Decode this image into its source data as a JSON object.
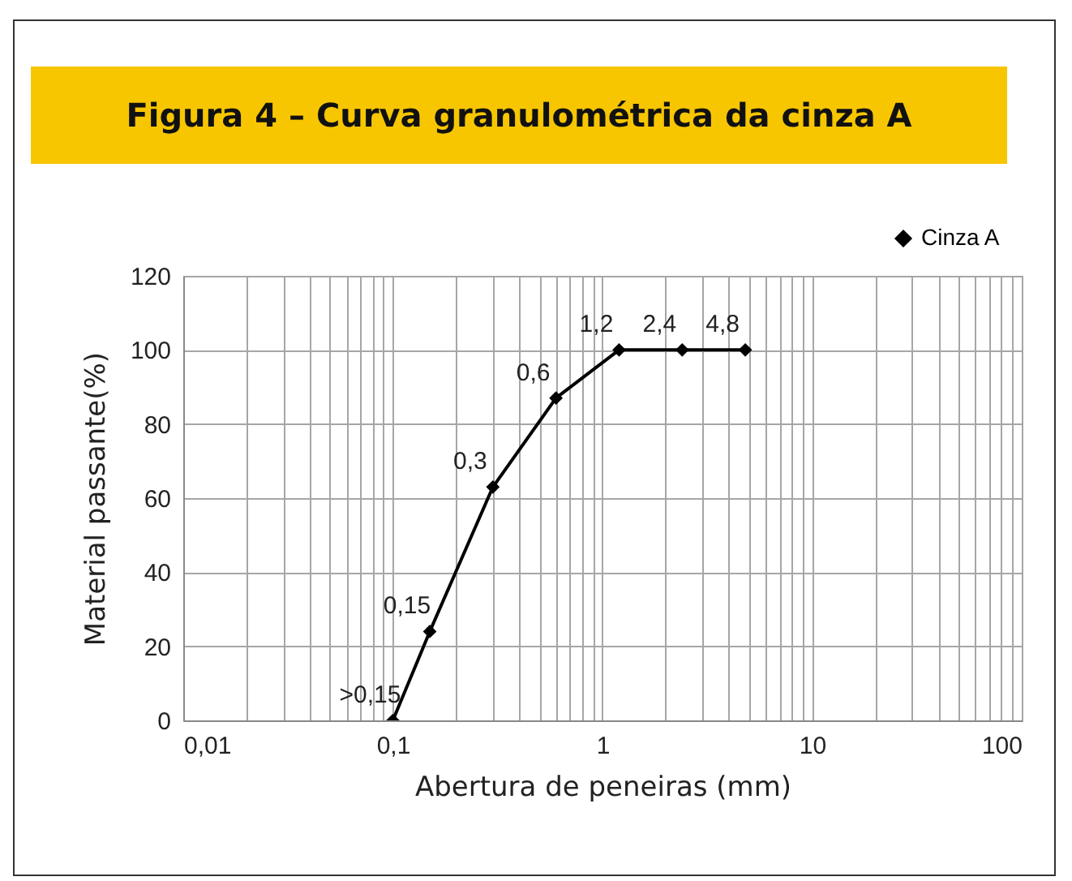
{
  "chart_data": {
    "type": "line",
    "title": "Figura 4 – Curva granulométrica da cinza A",
    "xlabel": "Abertura de peneiras (mm)",
    "ylabel": "Material passante(%)",
    "x": [
      0.1,
      0.15,
      0.3,
      0.6,
      1.2,
      2.4,
      4.8
    ],
    "series": [
      {
        "name": "Cinza A",
        "color": "#000000",
        "values": [
          0,
          24,
          63,
          87,
          100,
          100,
          100
        ]
      }
    ],
    "annotations": [
      {
        "text": ">0,15",
        "x": 0.1,
        "y": 0
      },
      {
        "text": "0,15",
        "x": 0.15,
        "y": 24
      },
      {
        "text": "0,3",
        "x": 0.3,
        "y": 63
      },
      {
        "text": "0,6",
        "x": 0.6,
        "y": 87
      },
      {
        "text": "1,2",
        "x": 1.2,
        "y": 100
      },
      {
        "text": "2,4",
        "x": 2.4,
        "y": 100
      },
      {
        "text": "4,8",
        "x": 4.8,
        "y": 100
      }
    ],
    "log": "x",
    "xlim": [
      0.01,
      100
    ],
    "ylim": [
      0,
      120
    ],
    "xticks": [
      {
        "value": 0.01,
        "label": "0,01"
      },
      {
        "value": 0.02,
        "label": null
      },
      {
        "value": 0.03,
        "label": null
      },
      {
        "value": 0.04,
        "label": null
      },
      {
        "value": 0.05,
        "label": null
      },
      {
        "value": 0.06,
        "label": null
      },
      {
        "value": 0.07,
        "label": null
      },
      {
        "value": 0.08,
        "label": null
      },
      {
        "value": 0.09,
        "label": null
      },
      {
        "value": 0.1,
        "label": "0,1"
      },
      {
        "value": 0.2,
        "label": null
      },
      {
        "value": 0.3,
        "label": null
      },
      {
        "value": 0.4,
        "label": null
      },
      {
        "value": 0.5,
        "label": null
      },
      {
        "value": 0.6,
        "label": null
      },
      {
        "value": 0.7,
        "label": null
      },
      {
        "value": 0.8,
        "label": null
      },
      {
        "value": 0.9,
        "label": null
      },
      {
        "value": 1,
        "label": "1"
      },
      {
        "value": 2,
        "label": null
      },
      {
        "value": 3,
        "label": null
      },
      {
        "value": 4,
        "label": null
      },
      {
        "value": 5,
        "label": null
      },
      {
        "value": 6,
        "label": null
      },
      {
        "value": 7,
        "label": null
      },
      {
        "value": 8,
        "label": null
      },
      {
        "value": 9,
        "label": null
      },
      {
        "value": 10,
        "label": "10"
      },
      {
        "value": 20,
        "label": null
      },
      {
        "value": 30,
        "label": null
      },
      {
        "value": 40,
        "label": null
      },
      {
        "value": 50,
        "label": null
      },
      {
        "value": 60,
        "label": null
      },
      {
        "value": 70,
        "label": null
      },
      {
        "value": 80,
        "label": null
      },
      {
        "value": 90,
        "label": null
      },
      {
        "value": 100,
        "label": "100"
      }
    ],
    "yticks": [
      0,
      20,
      40,
      60,
      80,
      100,
      120
    ],
    "grid": true,
    "legend": "top right",
    "marker": "diamond",
    "line_style": "solid"
  }
}
